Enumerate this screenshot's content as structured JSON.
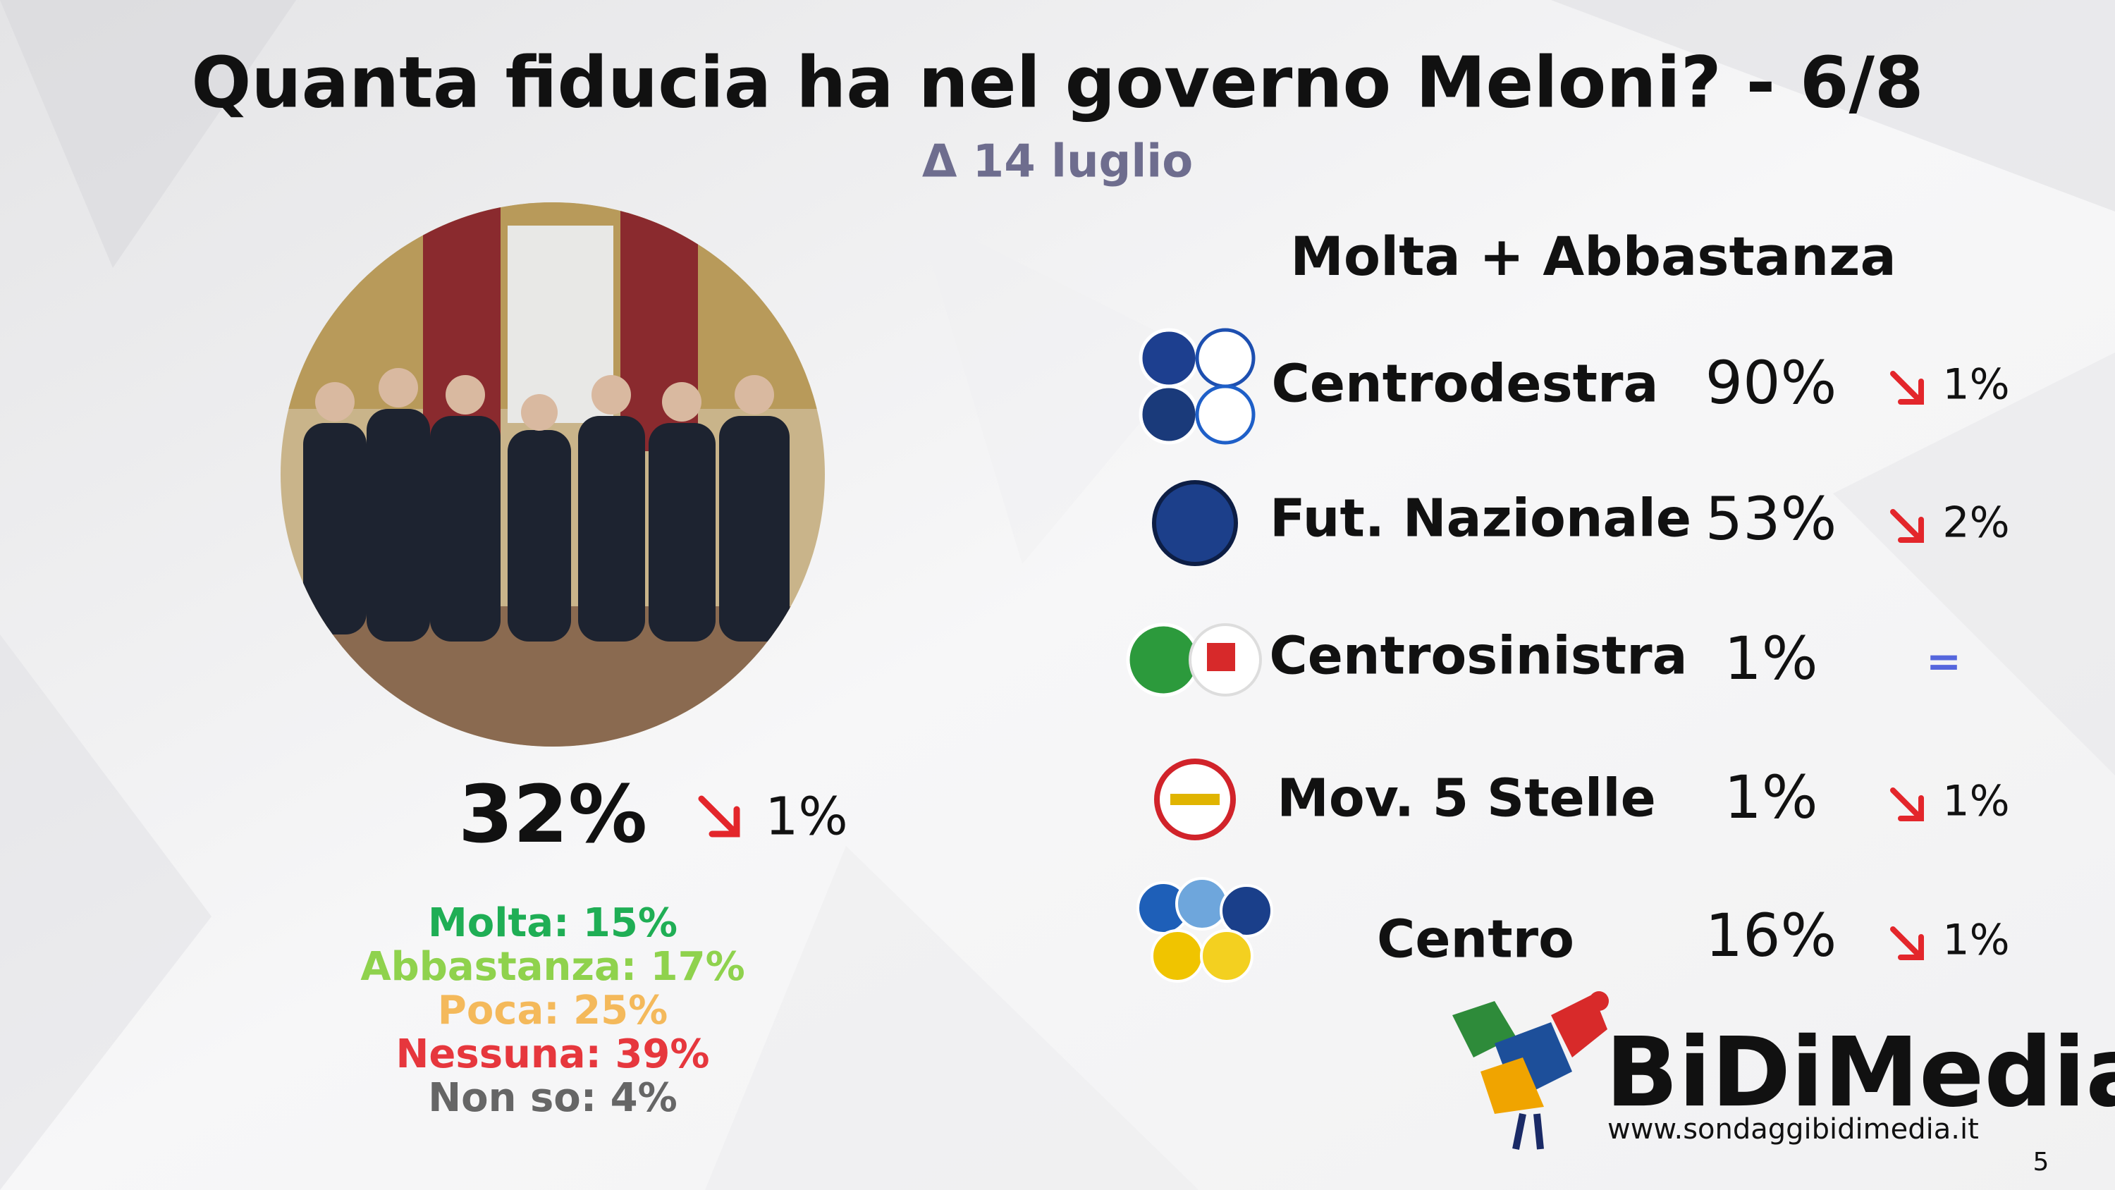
{
  "header": {
    "title": "Quanta fiducia ha nel governo Meloni? - 6/8",
    "subtitle": "Δ 14 luglio"
  },
  "overall": {
    "value": "32%",
    "change": "1%",
    "breakdown": [
      "Molta: 15%",
      "Abbastanza: 17%",
      "Poca: 25%",
      "Nessuna: 39%",
      "Non so: 4%"
    ]
  },
  "table": {
    "heading": "Molta + Abbastanza",
    "rows": [
      {
        "name": "Centrodestra",
        "value": "90%",
        "change": "1%"
      },
      {
        "name": "Fut. Nazionale",
        "value": "53%",
        "change": "2%"
      },
      {
        "name": "Centrosinistra",
        "value": "1%",
        "change": "="
      },
      {
        "name": "Mov. 5 Stelle",
        "value": "1%",
        "change": "1%"
      },
      {
        "name": "Centro",
        "value": "16%",
        "change": "1%"
      }
    ]
  },
  "footer": {
    "brand": "BiDiMedia",
    "url": "www.sondaggibidimedia.it",
    "page": "5"
  }
}
